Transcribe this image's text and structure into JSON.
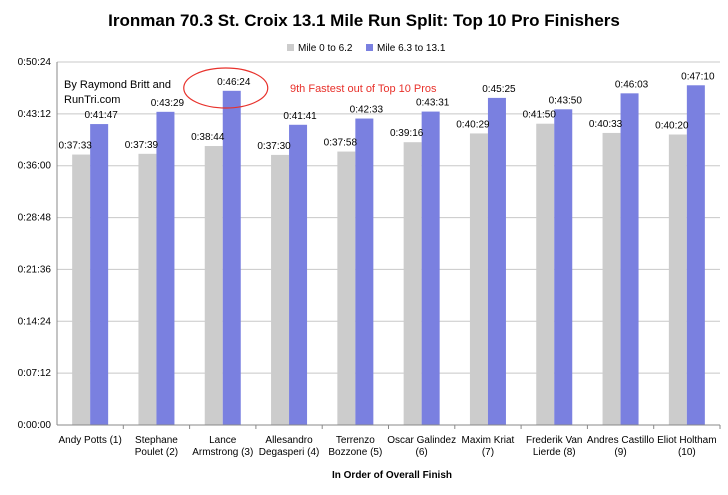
{
  "chart_data": {
    "type": "bar",
    "title": "Ironman 70.3 St. Croix 13.1 Mile Run Split: Top 10 Pro Finishers",
    "xlabel": "In Order of Overall Finish",
    "ylabel": "",
    "y_unit": "h:mm:ss",
    "ylim": [
      "0:00:00",
      "0:50:24"
    ],
    "yticks": [
      "0:00:00",
      "0:07:12",
      "0:14:24",
      "0:21:36",
      "0:28:48",
      "0:36:00",
      "0:43:12",
      "0:50:24"
    ],
    "grid": true,
    "legend_position": "top-center",
    "categories": [
      [
        "Andy Potts (1)"
      ],
      [
        "Stephane",
        "Poulet (2)"
      ],
      [
        "Lance",
        "Armstrong (3)"
      ],
      [
        "Allesandro",
        "Degasperi (4)"
      ],
      [
        "Terrenzo",
        "Bozzone (5)"
      ],
      [
        "Oscar Galindez",
        "(6)"
      ],
      [
        "Maxim Kriat",
        "(7)"
      ],
      [
        "Frederik Van",
        "Lierde (8)"
      ],
      [
        "Andres Castillo",
        "(9)"
      ],
      [
        "Eliot Holtham",
        "(10)"
      ]
    ],
    "series": [
      {
        "name": "Mile 0 to 6.2",
        "color": "#cccccc",
        "values": [
          "0:37:33",
          "0:37:39",
          "0:38:44",
          "0:37:30",
          "0:37:58",
          "0:39:16",
          "0:40:29",
          "0:41:50",
          "0:40:33",
          "0:40:20"
        ]
      },
      {
        "name": "Mile 6.3 to 13.1",
        "color": "#7a80e0",
        "values": [
          "0:41:47",
          "0:43:29",
          "0:46:24",
          "0:41:41",
          "0:42:33",
          "0:43:31",
          "0:45:25",
          "0:43:50",
          "0:46:03",
          "0:47:10"
        ]
      }
    ],
    "data_labels": [
      [
        "0:37:33",
        "0:37:39",
        "0:38:44",
        "0:37:30",
        "0:37:58",
        "0:39:16",
        "0:40:29",
        "0:41:50",
        "0:40:33",
        "0:40:20"
      ],
      [
        "0:41:47",
        "0:43:29",
        "0:46:24",
        "0:41:41",
        "0:42:33",
        "0:43:31",
        "0:45:25",
        "0:43:50",
        "0:46:03",
        "0:47:10"
      ]
    ],
    "annotations": {
      "credit": [
        "By Raymond Britt and",
        "RunTri.com"
      ],
      "callout": "9th Fastest out of Top 10 Pros",
      "callout_color": "#e8312b",
      "callout_target_category": 2
    }
  }
}
